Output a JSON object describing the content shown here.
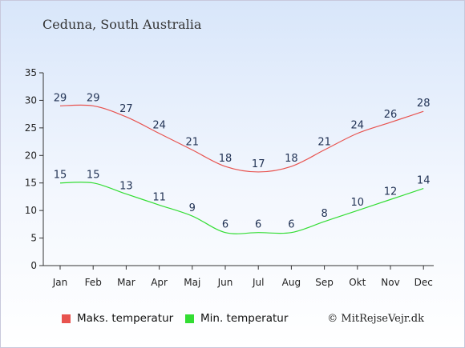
{
  "title": "Ceduna, South Australia",
  "copyright": "© MitRejseVejr.dk",
  "chart_data": {
    "type": "line",
    "categories": [
      "Jan",
      "Feb",
      "Mar",
      "Apr",
      "Maj",
      "Jun",
      "Jul",
      "Aug",
      "Sep",
      "Okt",
      "Nov",
      "Dec"
    ],
    "series": [
      {
        "name": "Maks. temperatur",
        "color": "#e8534f",
        "values": [
          29,
          29,
          27,
          24,
          21,
          18,
          17,
          18,
          21,
          24,
          26,
          28
        ]
      },
      {
        "name": "Min. temperatur",
        "color": "#33dd33",
        "values": [
          15,
          15,
          13,
          11,
          9,
          6,
          6,
          6,
          8,
          10,
          12,
          14
        ]
      }
    ],
    "ylim": [
      0,
      35
    ],
    "yticks": [
      0,
      5,
      10,
      15,
      20,
      25,
      30,
      35
    ],
    "xlabel": "",
    "ylabel": "",
    "grid": false,
    "legend": "bottom-left"
  }
}
